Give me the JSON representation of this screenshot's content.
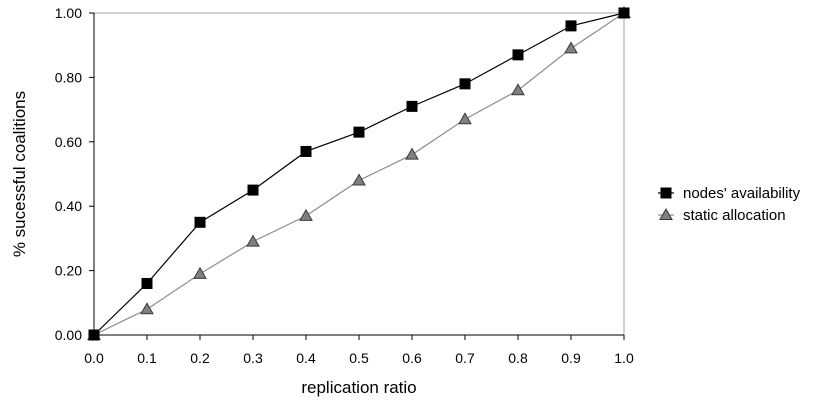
{
  "chart_data": {
    "type": "line",
    "title": "",
    "xlabel": "replication ratio",
    "ylabel": "% sucessful coalitions",
    "x": [
      0.0,
      0.1,
      0.2,
      0.3,
      0.4,
      0.5,
      0.6,
      0.7,
      0.8,
      0.9,
      1.0
    ],
    "x_tick_labels": [
      "0.0",
      "0.1",
      "0.2",
      "0.3",
      "0.4",
      "0.5",
      "0.6",
      "0.7",
      "0.8",
      "0.9",
      "1.0"
    ],
    "y_ticks": [
      0,
      0.2,
      0.4,
      0.6,
      0.8,
      1.0
    ],
    "y_tick_labels": [
      "0.00",
      "0.20",
      "0.40",
      "0.60",
      "0.80",
      "1.00"
    ],
    "xlim": [
      0,
      1
    ],
    "ylim": [
      0,
      1
    ],
    "grid": false,
    "legend_position": "right",
    "series": [
      {
        "name": "nodes' availability",
        "marker": "square",
        "color": "#000000",
        "values": [
          0.0,
          0.16,
          0.35,
          0.45,
          0.57,
          0.63,
          0.71,
          0.78,
          0.87,
          0.96,
          1.0
        ]
      },
      {
        "name": "static allocation",
        "marker": "triangle",
        "color": "#808080",
        "values": [
          0.0,
          0.08,
          0.19,
          0.29,
          0.37,
          0.48,
          0.56,
          0.67,
          0.76,
          0.89,
          1.0
        ]
      }
    ]
  }
}
